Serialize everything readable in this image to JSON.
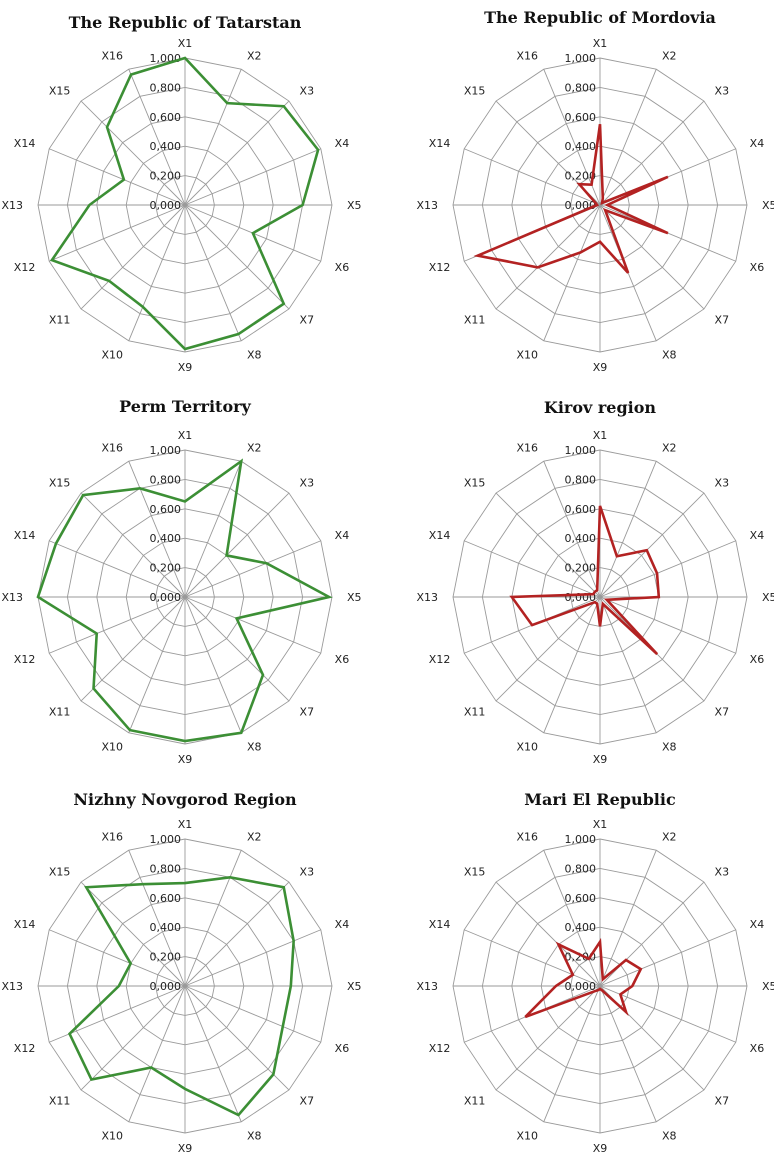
{
  "chart_data": [
    {
      "type": "radar",
      "title": "The Republic of Tatarstan",
      "axes": [
        "X1",
        "X2",
        "X3",
        "X4",
        "X5",
        "X6",
        "X7",
        "X8",
        "X9",
        "X10",
        "X11",
        "X12",
        "X13",
        "X14",
        "X15",
        "X16"
      ],
      "ticks": [
        "0,000",
        "0,200",
        "0,400",
        "0,600",
        "0,800",
        "1,000"
      ],
      "range": [
        0,
        1
      ],
      "color": "#3c8f35",
      "values": [
        1.0,
        0.75,
        0.95,
        0.98,
        0.8,
        0.5,
        0.95,
        0.95,
        0.98,
        0.75,
        0.73,
        0.98,
        0.65,
        0.45,
        0.75,
        0.96
      ]
    },
    {
      "type": "radar",
      "title": "The Republic of Mordovia",
      "axes": [
        "X1",
        "X2",
        "X3",
        "X4",
        "X5",
        "X6",
        "X7",
        "X8",
        "X9",
        "X10",
        "X11",
        "X12",
        "X13",
        "X14",
        "X15",
        "X16"
      ],
      "ticks": [
        "0,000",
        "0,200",
        "0,400",
        "0,600",
        "0,800",
        "1,000"
      ],
      "range": [
        0,
        1
      ],
      "color": "#b32222",
      "values": [
        0.55,
        0.05,
        0.02,
        0.5,
        0.05,
        0.5,
        0.05,
        0.5,
        0.25,
        0.35,
        0.6,
        0.9,
        0.02,
        0.03,
        0.2,
        0.15
      ]
    },
    {
      "type": "radar",
      "title": "Perm Territory",
      "axes": [
        "X1",
        "X2",
        "X3",
        "X4",
        "X5",
        "X6",
        "X7",
        "X8",
        "X9",
        "X10",
        "X11",
        "X12",
        "X13",
        "X14",
        "X15",
        "X16"
      ],
      "ticks": [
        "0,000",
        "0,200",
        "0,400",
        "0,600",
        "0,800",
        "1,000"
      ],
      "range": [
        0,
        1
      ],
      "color": "#3c8f35",
      "values": [
        0.65,
        1.0,
        0.4,
        0.6,
        0.98,
        0.38,
        0.75,
        1.0,
        0.98,
        0.98,
        0.88,
        0.65,
        1.0,
        0.95,
        0.98,
        0.8
      ]
    },
    {
      "type": "radar",
      "title": "Kirov region",
      "axes": [
        "X1",
        "X2",
        "X3",
        "X4",
        "X5",
        "X6",
        "X7",
        "X8",
        "X9",
        "X10",
        "X11",
        "X12",
        "X13",
        "X14",
        "X15",
        "X16"
      ],
      "ticks": [
        "0,000",
        "0,200",
        "0,400",
        "0,600",
        "0,800",
        "1,000"
      ],
      "range": [
        0,
        1
      ],
      "color": "#b32222",
      "values": [
        0.62,
        0.3,
        0.45,
        0.42,
        0.4,
        0.05,
        0.55,
        0.05,
        0.2,
        0.05,
        0.05,
        0.5,
        0.6,
        0.05,
        0.05,
        0.05
      ]
    },
    {
      "type": "radar",
      "title": "Nizhny Novgorod Region",
      "axes": [
        "X1",
        "X2",
        "X3",
        "X4",
        "X5",
        "X6",
        "X7",
        "X8",
        "X9",
        "X10",
        "X11",
        "X12",
        "X13",
        "X14",
        "X15",
        "X16"
      ],
      "ticks": [
        "0,000",
        "0,200",
        "0,400",
        "0,600",
        "0,800",
        "1,000"
      ],
      "range": [
        0,
        1
      ],
      "color": "#3c8f35",
      "values": [
        0.7,
        0.8,
        0.95,
        0.8,
        0.72,
        0.72,
        0.85,
        0.95,
        0.7,
        0.6,
        0.9,
        0.85,
        0.45,
        0.4,
        0.95,
        0.75
      ]
    },
    {
      "type": "radar",
      "title": "Mari El Republic",
      "axes": [
        "X1",
        "X2",
        "X3",
        "X4",
        "X5",
        "X6",
        "X7",
        "X8",
        "X9",
        "X10",
        "X11",
        "X12",
        "X13",
        "X14",
        "X15",
        "X16"
      ],
      "ticks": [
        "0,000",
        "0,200",
        "0,400",
        "0,600",
        "0,800",
        "1,000"
      ],
      "range": [
        0,
        1
      ],
      "color": "#b32222",
      "values": [
        0.3,
        0.05,
        0.25,
        0.3,
        0.22,
        0.15,
        0.25,
        0.03,
        0.02,
        0.03,
        0.05,
        0.55,
        0.3,
        0.2,
        0.4,
        0.2
      ]
    }
  ]
}
